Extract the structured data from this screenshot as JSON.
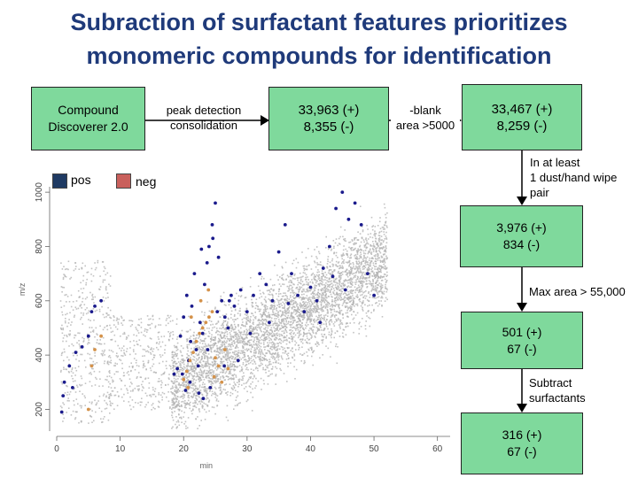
{
  "title": {
    "line1": "Subraction of surfactant features prioritizes",
    "line2": "monomeric compounds for identification"
  },
  "flow": {
    "box1": {
      "line1": "Compound",
      "line2": "Discoverer 2.0"
    },
    "step1_label": {
      "line1": "peak detection",
      "line2": "consolidation"
    },
    "box2": {
      "line1": "33,963 (+)",
      "line2": "8,355 (-)"
    },
    "step2_label": {
      "line1": "-blank",
      "line2": "area >5000"
    },
    "box3": {
      "line1": "33,467 (+)",
      "line2": "8,259 (-)"
    },
    "step3_label": {
      "line1": "In at least",
      "line2": "1 dust/hand wipe",
      "line3": "pair"
    },
    "box4": {
      "line1": "3,976 (+)",
      "line2": "834 (-)"
    },
    "step4_label": "Max area > 55,000",
    "box5": {
      "line1": "501 (+)",
      "line2": "67 (-)"
    },
    "step5_label": {
      "line1": "Subtract",
      "line2": "surfactants"
    },
    "box6": {
      "line1": "316 (+)",
      "line2": "67 (-)"
    }
  },
  "legend": {
    "pos": {
      "label": "pos",
      "color": "#1f3a63"
    },
    "neg": {
      "label": "neg",
      "color": "#c9605c"
    }
  },
  "colors": {
    "box_fill": "#7fd99c",
    "title": "#1f3a7a",
    "background_points": "#b4b4b4",
    "pos_points": "#1a1a8c",
    "neg_points": "#d4924a"
  },
  "chart_data": {
    "type": "scatter",
    "xlabel": "min",
    "ylabel": "m/z",
    "xlim": [
      0,
      62
    ],
    "ylim": [
      120,
      1020
    ],
    "xticks": [
      0,
      10,
      20,
      30,
      40,
      50,
      60
    ],
    "yticks": [
      200,
      400,
      600,
      800,
      1000
    ],
    "grid": false,
    "series": [
      {
        "name": "pos",
        "color": "#1a1a8c",
        "x": [
          0.8,
          1.0,
          1.2,
          2.0,
          2.5,
          3.0,
          4.0,
          5.0,
          5.5,
          6.0,
          7.0,
          18.5,
          19.0,
          19.5,
          20.0,
          20.5,
          20.8,
          21.0,
          21.3,
          21.7,
          22.0,
          22.3,
          22.6,
          23.0,
          23.3,
          23.7,
          24.0,
          24.5,
          25.0,
          25.5,
          26.0,
          26.5,
          27.0,
          27.5,
          28.0,
          29.0,
          30.0,
          31.0,
          32.0,
          33.0,
          34.0,
          35.0,
          36.0,
          37.0,
          38.0,
          39.0,
          40.0,
          41.0,
          42.0,
          43.0,
          44.0,
          45.0,
          46.0,
          47.0,
          48.0,
          49.0,
          50.0,
          22.4,
          23.1,
          24.2,
          25.3,
          26.4,
          27.2,
          28.6,
          21.1,
          20.3,
          19.8,
          23.8,
          30.5,
          33.5,
          36.5,
          45.5,
          43.5,
          41.5,
          22.8,
          24.6
        ],
        "y": [
          190,
          250,
          300,
          360,
          280,
          410,
          430,
          470,
          560,
          580,
          600,
          330,
          350,
          470,
          540,
          620,
          380,
          300,
          580,
          700,
          420,
          360,
          520,
          480,
          660,
          740,
          800,
          880,
          960,
          760,
          600,
          540,
          500,
          620,
          580,
          640,
          560,
          620,
          700,
          660,
          600,
          780,
          880,
          700,
          620,
          560,
          650,
          600,
          720,
          800,
          940,
          1000,
          900,
          960,
          880,
          700,
          620,
          260,
          240,
          280,
          560,
          360,
          600,
          380,
          450,
          270,
          330,
          420,
          480,
          520,
          590,
          640,
          690,
          520,
          790,
          830
        ]
      },
      {
        "name": "neg",
        "color": "#d4924a",
        "x": [
          5.0,
          5.5,
          6.0,
          7.0,
          20.0,
          20.5,
          21.0,
          21.5,
          22.0,
          22.5,
          23.0,
          23.5,
          24.0,
          24.5,
          25.0,
          25.5,
          26.0,
          26.5,
          27.0,
          21.2,
          22.7,
          23.9,
          20.7,
          24.8
        ],
        "y": [
          200,
          360,
          420,
          470,
          310,
          340,
          380,
          410,
          450,
          480,
          500,
          520,
          540,
          560,
          390,
          360,
          300,
          420,
          350,
          540,
          600,
          640,
          280,
          320
        ]
      }
    ]
  }
}
